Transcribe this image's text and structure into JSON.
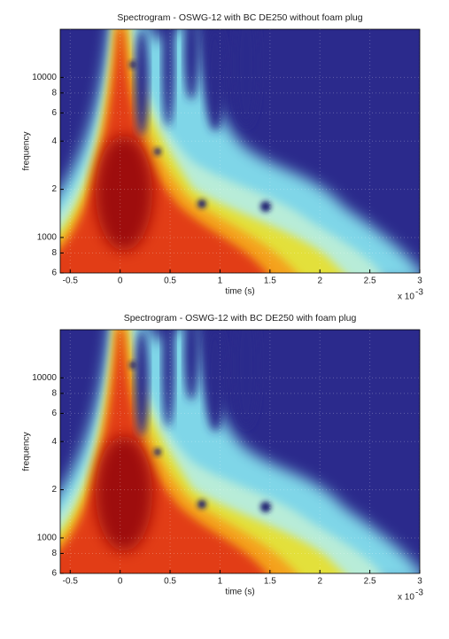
{
  "chart_data": [
    {
      "type": "spectrogram",
      "title": "Spectrogram - OSWG-12 with BC DE250 without foam plug",
      "xlabel": "time (s)",
      "ylabel": "frequency",
      "x_exponent_base": "x 10",
      "x_exponent": "-3",
      "xlim": [
        -0.0006,
        0.003
      ],
      "ylim": [
        600,
        20000
      ],
      "log_y": true,
      "grid": true,
      "xticks": [
        {
          "value": -0.0005,
          "label": "-0.5"
        },
        {
          "value": 0,
          "label": "0"
        },
        {
          "value": 0.0005,
          "label": "0.5"
        },
        {
          "value": 0.001,
          "label": "1"
        },
        {
          "value": 0.0015,
          "label": "1.5"
        },
        {
          "value": 0.002,
          "label": "2"
        },
        {
          "value": 0.0025,
          "label": "2.5"
        },
        {
          "value": 0.003,
          "label": "3"
        }
      ],
      "yticks": [
        {
          "value": 600,
          "label": "6"
        },
        {
          "value": 800,
          "label": "8"
        },
        1000,
        {
          "value": 2000,
          "label": "2"
        },
        {
          "value": 4000,
          "label": "4"
        },
        {
          "value": 6000,
          "label": "6"
        },
        {
          "value": 8000,
          "label": "8"
        },
        10000
      ]
    },
    {
      "type": "spectrogram",
      "title": "Spectrogram - OSWG-12 with BC DE250 with foam plug",
      "xlabel": "time (s)",
      "ylabel": "frequency",
      "x_exponent_base": "x 10",
      "x_exponent": "-3",
      "xlim": [
        -0.0006,
        0.003
      ],
      "ylim": [
        600,
        20000
      ],
      "log_y": true,
      "grid": true,
      "xticks": [
        {
          "value": -0.0005,
          "label": "-0.5"
        },
        {
          "value": 0,
          "label": "0"
        },
        {
          "value": 0.0005,
          "label": "0.5"
        },
        {
          "value": 0.001,
          "label": "1"
        },
        {
          "value": 0.0015,
          "label": "1.5"
        },
        {
          "value": 0.002,
          "label": "2"
        },
        {
          "value": 0.0025,
          "label": "2.5"
        },
        {
          "value": 0.003,
          "label": "3"
        }
      ],
      "yticks": [
        {
          "value": 600,
          "label": "6"
        },
        {
          "value": 800,
          "label": "8"
        },
        1000,
        {
          "value": 2000,
          "label": "2"
        },
        {
          "value": 4000,
          "label": "4"
        },
        {
          "value": 6000,
          "label": "6"
        },
        {
          "value": 8000,
          "label": "8"
        },
        10000
      ]
    }
  ]
}
